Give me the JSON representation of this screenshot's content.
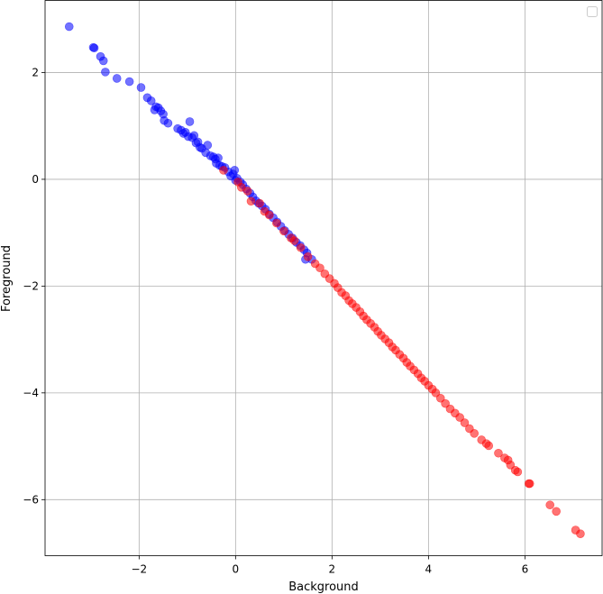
{
  "chart_data": {
    "type": "scatter",
    "title": "",
    "xlabel": "Background",
    "ylabel": "Foreground",
    "xlim": [
      -3.95,
      7.6
    ],
    "ylim": [
      -7.05,
      3.35
    ],
    "xticks": [
      -2,
      0,
      2,
      4,
      6
    ],
    "yticks": [
      2,
      0,
      -2,
      -4,
      -6
    ],
    "xtick_labels": [
      "−2",
      "0",
      "2",
      "4",
      "6"
    ],
    "ytick_labels": [
      "2",
      "0",
      "−2",
      "−4",
      "−6"
    ],
    "grid": true,
    "legend": {
      "placement": "top-right",
      "entries": []
    },
    "series": [
      {
        "color": "#0000ff",
        "points": [
          [
            -3.45,
            2.86
          ],
          [
            -2.95,
            2.47
          ],
          [
            -2.93,
            2.46
          ],
          [
            -2.8,
            2.3
          ],
          [
            -2.74,
            2.22
          ],
          [
            -2.7,
            2.01
          ],
          [
            -2.46,
            1.89
          ],
          [
            -2.2,
            1.83
          ],
          [
            -1.96,
            1.72
          ],
          [
            -1.83,
            1.53
          ],
          [
            -1.75,
            1.47
          ],
          [
            -1.68,
            1.3
          ],
          [
            -1.65,
            1.36
          ],
          [
            -1.6,
            1.34
          ],
          [
            -1.55,
            1.28
          ],
          [
            -1.5,
            1.22
          ],
          [
            -1.48,
            1.1
          ],
          [
            -1.4,
            1.05
          ],
          [
            -1.2,
            0.95
          ],
          [
            -1.13,
            0.92
          ],
          [
            -1.08,
            0.86
          ],
          [
            -1.04,
            0.88
          ],
          [
            -0.98,
            0.8
          ],
          [
            -0.95,
            1.08
          ],
          [
            -0.9,
            0.78
          ],
          [
            -0.86,
            0.82
          ],
          [
            -0.82,
            0.68
          ],
          [
            -0.78,
            0.7
          ],
          [
            -0.74,
            0.6
          ],
          [
            -0.7,
            0.58
          ],
          [
            -0.62,
            0.5
          ],
          [
            -0.58,
            0.64
          ],
          [
            -0.52,
            0.44
          ],
          [
            -0.46,
            0.42
          ],
          [
            -0.42,
            0.38
          ],
          [
            -0.4,
            0.3
          ],
          [
            -0.36,
            0.4
          ],
          [
            -0.33,
            0.26
          ],
          [
            -0.28,
            0.24
          ],
          [
            -0.22,
            0.22
          ],
          [
            -0.15,
            0.14
          ],
          [
            -0.1,
            0.06
          ],
          [
            -0.05,
            0.1
          ],
          [
            -0.02,
            0.17
          ],
          [
            0.0,
            -0.02
          ],
          [
            0.03,
            0.02
          ],
          [
            0.1,
            -0.05
          ],
          [
            0.15,
            -0.1
          ],
          [
            0.22,
            -0.18
          ],
          [
            0.3,
            -0.26
          ],
          [
            0.36,
            -0.33
          ],
          [
            0.42,
            -0.4
          ],
          [
            0.48,
            -0.45
          ],
          [
            0.55,
            -0.5
          ],
          [
            0.62,
            -0.56
          ],
          [
            0.7,
            -0.65
          ],
          [
            0.78,
            -0.72
          ],
          [
            0.86,
            -0.8
          ],
          [
            0.94,
            -0.88
          ],
          [
            1.02,
            -0.96
          ],
          [
            1.1,
            -1.03
          ],
          [
            1.18,
            -1.1
          ],
          [
            1.26,
            -1.18
          ],
          [
            1.34,
            -1.24
          ],
          [
            1.42,
            -1.32
          ],
          [
            1.48,
            -1.38
          ],
          [
            1.45,
            -1.5
          ],
          [
            1.58,
            -1.5
          ]
        ]
      },
      {
        "color": "#ff0000",
        "points": [
          [
            -0.25,
            0.17
          ],
          [
            0.05,
            -0.05
          ],
          [
            0.12,
            -0.15
          ],
          [
            0.25,
            -0.22
          ],
          [
            0.32,
            -0.41
          ],
          [
            0.5,
            -0.45
          ],
          [
            0.6,
            -0.6
          ],
          [
            0.7,
            -0.67
          ],
          [
            0.85,
            -0.82
          ],
          [
            1.0,
            -0.97
          ],
          [
            1.15,
            -1.1
          ],
          [
            1.22,
            -1.15
          ],
          [
            1.35,
            -1.28
          ],
          [
            1.5,
            -1.45
          ],
          [
            1.65,
            -1.58
          ],
          [
            1.75,
            -1.66
          ],
          [
            1.85,
            -1.77
          ],
          [
            1.95,
            -1.86
          ],
          [
            2.05,
            -1.95
          ],
          [
            2.12,
            -2.03
          ],
          [
            2.2,
            -2.12
          ],
          [
            2.28,
            -2.18
          ],
          [
            2.35,
            -2.27
          ],
          [
            2.42,
            -2.33
          ],
          [
            2.5,
            -2.4
          ],
          [
            2.58,
            -2.48
          ],
          [
            2.65,
            -2.56
          ],
          [
            2.72,
            -2.63
          ],
          [
            2.8,
            -2.7
          ],
          [
            2.88,
            -2.77
          ],
          [
            2.95,
            -2.85
          ],
          [
            3.02,
            -2.92
          ],
          [
            3.1,
            -2.99
          ],
          [
            3.18,
            -3.06
          ],
          [
            3.25,
            -3.14
          ],
          [
            3.32,
            -3.2
          ],
          [
            3.4,
            -3.28
          ],
          [
            3.48,
            -3.35
          ],
          [
            3.55,
            -3.43
          ],
          [
            3.62,
            -3.5
          ],
          [
            3.7,
            -3.57
          ],
          [
            3.78,
            -3.64
          ],
          [
            3.85,
            -3.72
          ],
          [
            3.92,
            -3.78
          ],
          [
            4.0,
            -3.86
          ],
          [
            4.08,
            -3.93
          ],
          [
            4.15,
            -4.0
          ],
          [
            4.25,
            -4.1
          ],
          [
            4.35,
            -4.2
          ],
          [
            4.45,
            -4.3
          ],
          [
            4.55,
            -4.38
          ],
          [
            4.65,
            -4.46
          ],
          [
            4.75,
            -4.56
          ],
          [
            4.85,
            -4.67
          ],
          [
            4.95,
            -4.76
          ],
          [
            5.1,
            -4.88
          ],
          [
            5.2,
            -4.95
          ],
          [
            5.25,
            -4.99
          ],
          [
            5.45,
            -5.13
          ],
          [
            5.58,
            -5.22
          ],
          [
            5.65,
            -5.26
          ],
          [
            5.7,
            -5.35
          ],
          [
            5.8,
            -5.45
          ],
          [
            5.85,
            -5.48
          ],
          [
            6.08,
            -5.7
          ],
          [
            6.1,
            -5.7
          ],
          [
            6.52,
            -6.1
          ],
          [
            6.65,
            -6.22
          ],
          [
            7.05,
            -6.57
          ],
          [
            7.15,
            -6.64
          ]
        ]
      }
    ]
  }
}
